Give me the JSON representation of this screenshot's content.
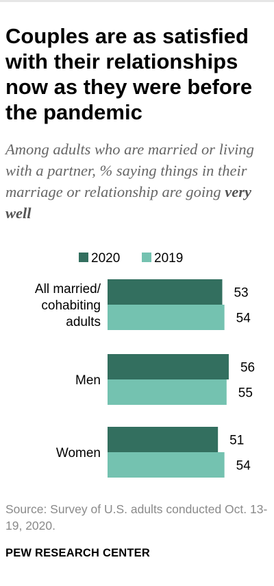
{
  "title": "Couples are as satisfied with their relationships now as they were before the pandemic",
  "subtitle_lead": "Among adults who are married or living with a partner, % saying things in their marriage or relationship are going ",
  "subtitle_emphasis": "very well",
  "source": "Source: Survey of U.S. adults conducted Oct. 13-19, 2020.",
  "brand": "PEW RESEARCH CENTER",
  "colors": {
    "2020": "#336f5f",
    "2019": "#74c2b0",
    "text": "#000000",
    "muted": "#8a8a8a"
  },
  "chart_data": {
    "type": "bar",
    "orientation": "horizontal",
    "categories": [
      [
        "All married/",
        "cohabiting",
        "adults"
      ],
      [
        "Men"
      ],
      [
        "Women"
      ]
    ],
    "series": [
      {
        "name": "2020",
        "values": [
          53,
          56,
          51
        ]
      },
      {
        "name": "2019",
        "values": [
          54,
          55,
          54
        ]
      }
    ],
    "legend": "top",
    "grid": false
  }
}
